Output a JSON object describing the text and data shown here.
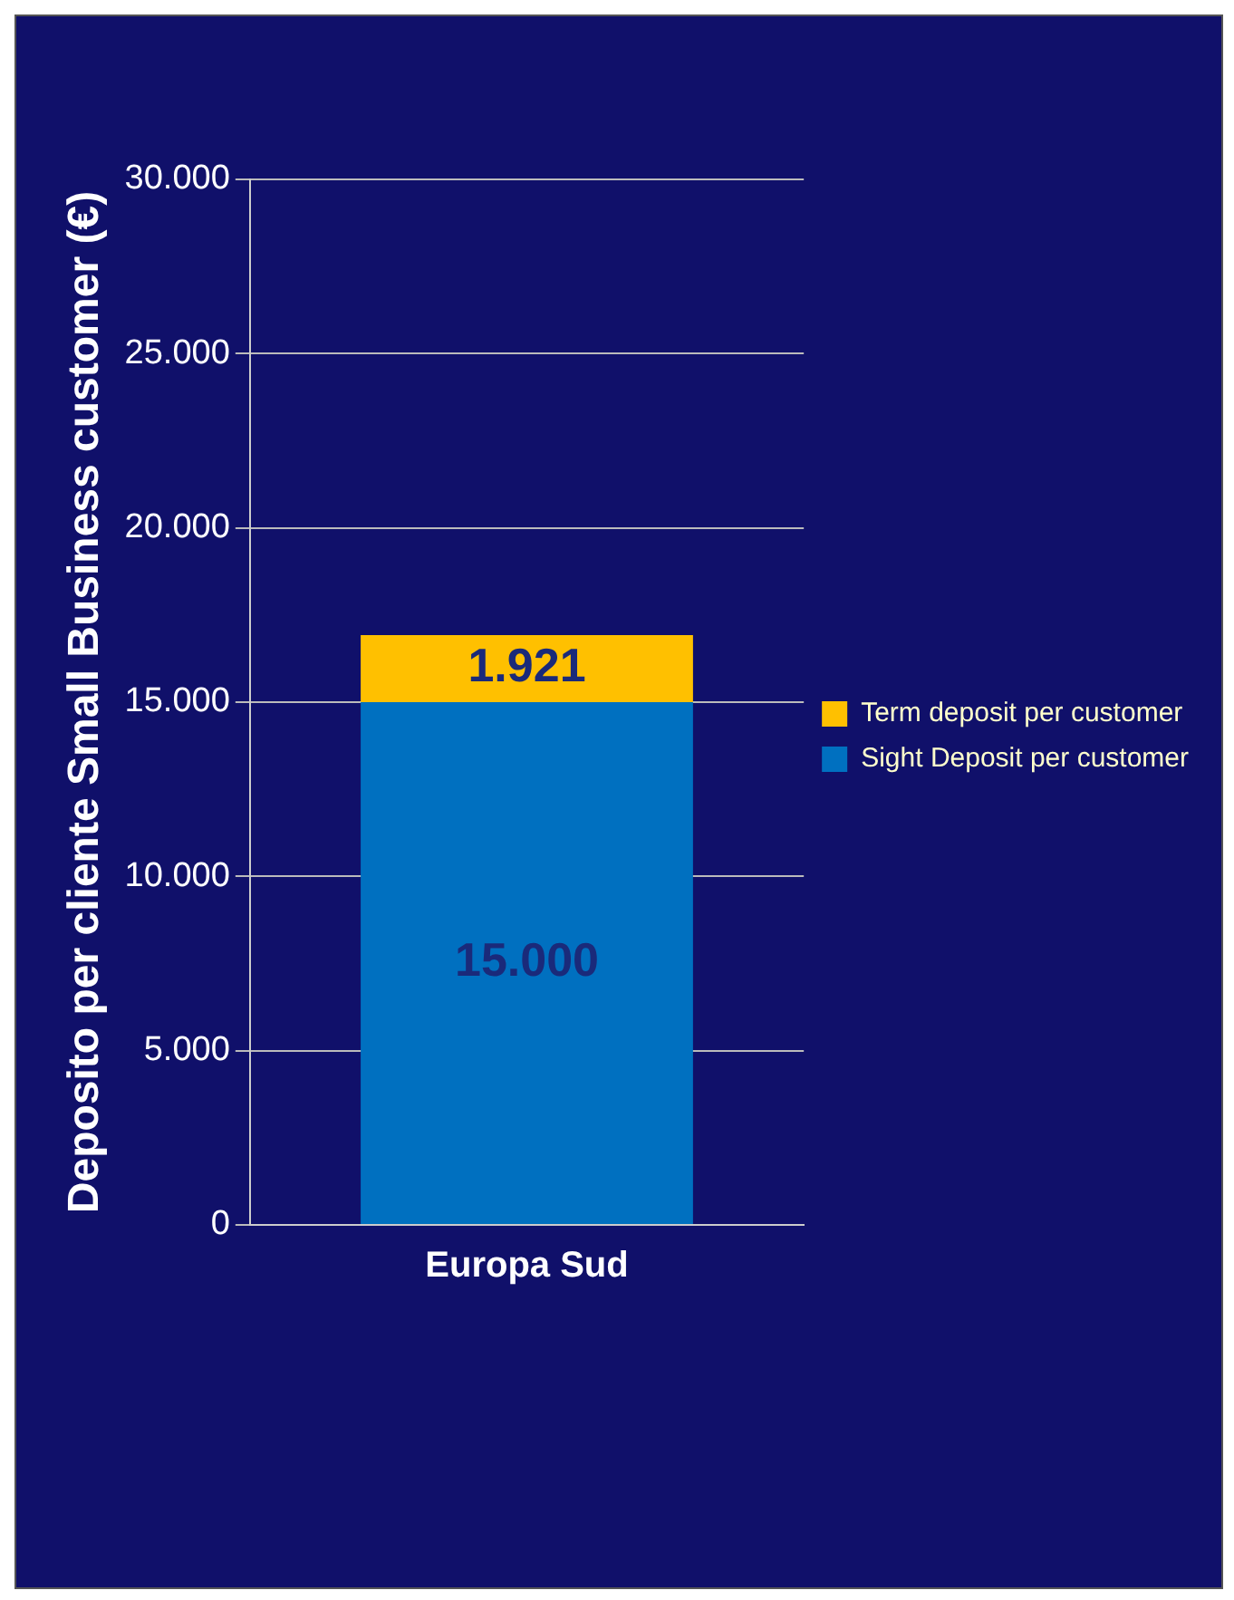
{
  "chart_data": {
    "type": "bar",
    "stacked": true,
    "ylabel": "Deposito per cliente Small Business customer (€)",
    "categories": [
      "Europa Sud"
    ],
    "series": [
      {
        "name": "Sight Deposit per customer",
        "color": "#0070c0",
        "values": [
          15000
        ],
        "value_labels": [
          "15.000"
        ]
      },
      {
        "name": "Term deposit per customer",
        "color": "#ffc000",
        "values": [
          1921
        ],
        "value_labels": [
          "1.921"
        ]
      }
    ],
    "ylim": [
      0,
      30000
    ],
    "yticks": [
      {
        "value": 0,
        "label": "0"
      },
      {
        "value": 5000,
        "label": "5.000"
      },
      {
        "value": 10000,
        "label": "10.000"
      },
      {
        "value": 15000,
        "label": "15.000"
      },
      {
        "value": 20000,
        "label": "20.000"
      },
      {
        "value": 25000,
        "label": "25.000"
      },
      {
        "value": 30000,
        "label": "30.000"
      }
    ],
    "grid": "y",
    "legend": "right"
  }
}
